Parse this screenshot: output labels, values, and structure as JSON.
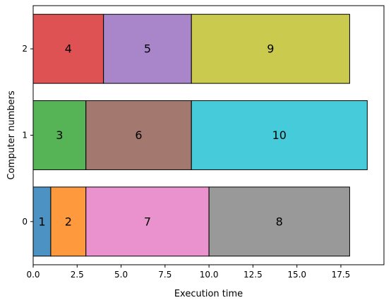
{
  "chart_data": {
    "type": "bar",
    "orientation": "horizontal-stacked",
    "title": "",
    "xlabel": "Execution time",
    "ylabel": "Computer numbers",
    "xlim": [
      0,
      19.95
    ],
    "ylim": [
      -0.5,
      2.5
    ],
    "x_ticks": [
      0,
      2.5,
      5,
      7.5,
      10,
      12.5,
      15,
      17.5
    ],
    "x_tick_labels": [
      "0.0",
      "2.5",
      "5.0",
      "7.5",
      "10.0",
      "12.5",
      "15.0",
      "17.5"
    ],
    "y_ticks": [
      0,
      1,
      2
    ],
    "y_tick_labels": [
      "0",
      "1",
      "2"
    ],
    "grid": false,
    "legend": "none",
    "bars": [
      {
        "label": "1",
        "computer": 0,
        "start": 0,
        "duration": 1,
        "color": "#1f77b4"
      },
      {
        "label": "2",
        "computer": 0,
        "start": 1,
        "duration": 2,
        "color": "#ff7f0e"
      },
      {
        "label": "7",
        "computer": 0,
        "start": 3,
        "duration": 7,
        "color": "#e377c2"
      },
      {
        "label": "8",
        "computer": 0,
        "start": 10,
        "duration": 8,
        "color": "#7f7f7f"
      },
      {
        "label": "3",
        "computer": 1,
        "start": 0,
        "duration": 3,
        "color": "#2ca02c"
      },
      {
        "label": "6",
        "computer": 1,
        "start": 3,
        "duration": 6,
        "color": "#8c564b"
      },
      {
        "label": "10",
        "computer": 1,
        "start": 9,
        "duration": 10,
        "color": "#17becf"
      },
      {
        "label": "4",
        "computer": 2,
        "start": 0,
        "duration": 4,
        "color": "#d62728"
      },
      {
        "label": "5",
        "computer": 2,
        "start": 4,
        "duration": 5,
        "color": "#9467bd"
      },
      {
        "label": "9",
        "computer": 2,
        "start": 9,
        "duration": 9,
        "color": "#bcbd22"
      }
    ],
    "bar_alpha": 0.8,
    "edge_color": "#000000"
  }
}
